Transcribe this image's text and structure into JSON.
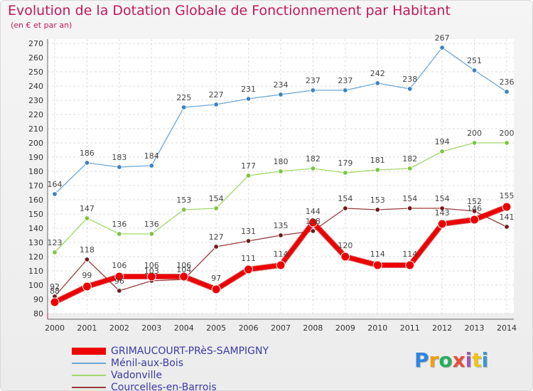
{
  "header": {
    "title": "Evolution de la Dotation Globale de Fonctionnement par Habitant",
    "subtitle": "(en € et par an)"
  },
  "logo": {
    "text": "Proxiti",
    "letters": [
      "P",
      "r",
      "o",
      "x",
      "i",
      "t",
      "i"
    ],
    "colors": [
      "#2e86de",
      "#f39c12",
      "#27ae60",
      "#e74c3c",
      "#9b59b6",
      "#f1c40f",
      "#3498db"
    ]
  },
  "chart_data": {
    "type": "line",
    "title": "Evolution de la Dotation Globale de Fonctionnement par Habitant",
    "subtitle": "(en € et par an)",
    "x": [
      "2000",
      "2001",
      "2002",
      "2003",
      "2004",
      "2005",
      "2006",
      "2007",
      "2008",
      "2009",
      "2010",
      "2011",
      "2012",
      "2013",
      "2014"
    ],
    "ylim": [
      80,
      270
    ],
    "yticks": [
      80,
      90,
      100,
      110,
      120,
      130,
      140,
      150,
      160,
      170,
      180,
      190,
      200,
      210,
      220,
      230,
      240,
      250,
      260,
      270
    ],
    "grid": true,
    "legend_position": "bottom-left",
    "series": [
      {
        "name": "GRIMAUCOURT-PRèS-SAMPIGNY",
        "color": "#ee0000",
        "width": 6,
        "values": [
          88,
          99,
          106,
          106,
          106,
          97,
          111,
          114,
          144,
          120,
          114,
          114,
          143,
          146,
          155
        ]
      },
      {
        "name": "Ménil-aux-Bois",
        "color": "#6aa6d8",
        "width": 1.3,
        "marker": "#3c82c4",
        "values": [
          164,
          186,
          183,
          184,
          225,
          227,
          231,
          234,
          237,
          237,
          242,
          238,
          267,
          251,
          236
        ]
      },
      {
        "name": "Vadonville",
        "color": "#9fd86a",
        "width": 1.3,
        "marker": "#7cc441",
        "values": [
          123,
          147,
          136,
          136,
          153,
          154,
          177,
          180,
          182,
          179,
          181,
          182,
          194,
          200,
          200
        ]
      },
      {
        "name": "Courcelles-en-Barrois",
        "color": "#9b3b3b",
        "width": 1.3,
        "marker": "#6e1c1c",
        "values": [
          92,
          118,
          96,
          103,
          104,
          127,
          131,
          135,
          138,
          154,
          153,
          154,
          154,
          152,
          141
        ]
      }
    ],
    "data_labels": {
      "GRIMAUCOURT-PRèS-SAMPIGNY": [
        "88",
        "99",
        "106",
        "106",
        "106",
        "97",
        "111",
        "114",
        "144",
        "120",
        "114",
        "114",
        "143",
        "146",
        "155"
      ],
      "Ménil-aux-Bois": [
        "164",
        "186",
        "183",
        "184",
        "225",
        "227",
        "231",
        "234",
        "237",
        "237",
        "242",
        "238",
        "267",
        "251",
        "236"
      ],
      "Vadonville": [
        "123",
        "147",
        "136",
        "136",
        "153",
        "154",
        "177",
        "180",
        "182",
        "179",
        "181",
        "182",
        "194",
        "200",
        "200"
      ],
      "Courcelles-en-Barrois": [
        "92",
        "118",
        "96",
        "103",
        "104",
        "127",
        "131",
        "135",
        "138",
        "154",
        "153",
        "154",
        "154",
        "152",
        "141"
      ]
    }
  }
}
